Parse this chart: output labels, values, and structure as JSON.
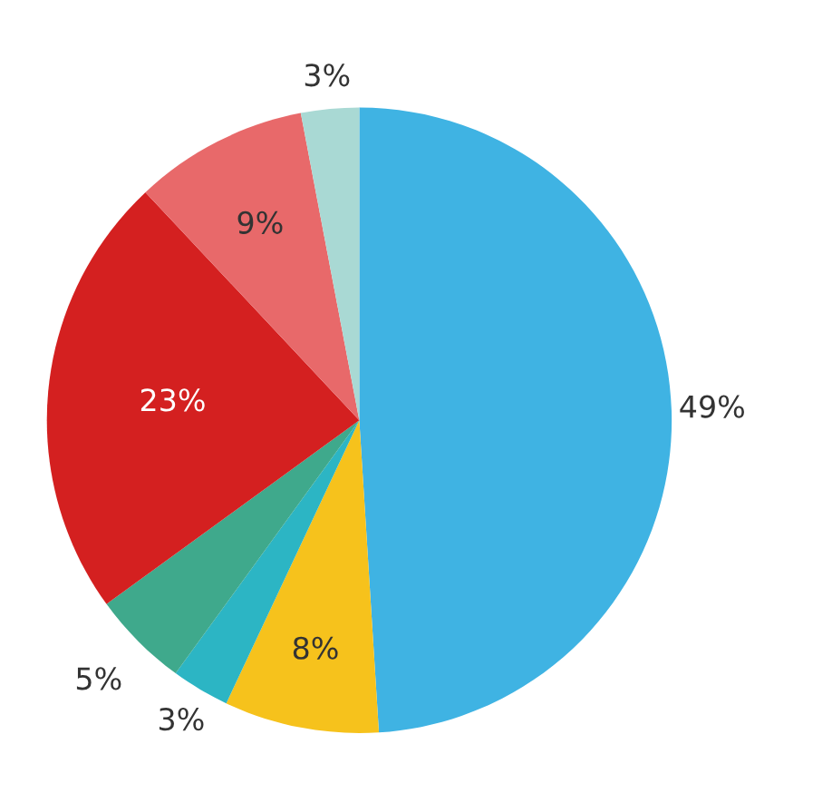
{
  "chart_data": {
    "type": "pie",
    "categories": [
      null,
      null,
      null,
      null,
      null,
      null,
      null
    ],
    "values": [
      49,
      8,
      3,
      5,
      23,
      9,
      3
    ],
    "colors": [
      "#3fb3e3",
      "#f6c21c",
      "#2cb5c4",
      "#3fa98c",
      "#d42020",
      "#e8696a",
      "#a9d9d4"
    ],
    "value_labels": [
      "49%",
      "8%",
      "3%",
      "5%",
      "23%",
      "9%",
      "3%"
    ]
  }
}
